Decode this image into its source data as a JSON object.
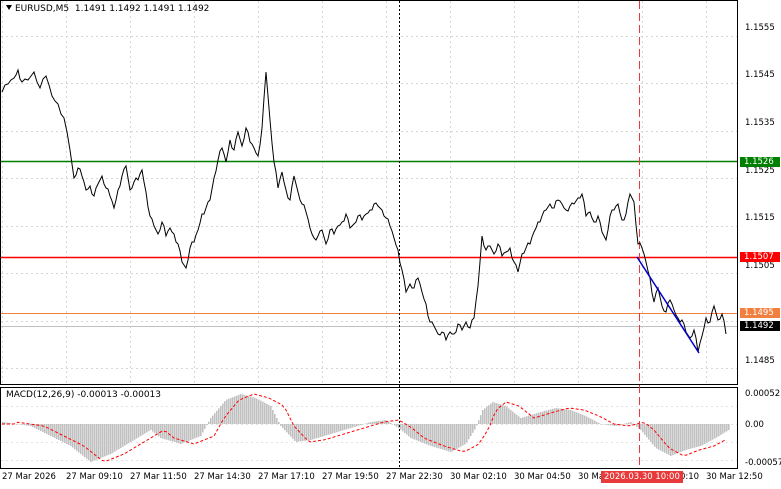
{
  "header": {
    "symbol": "EURUSD,M5",
    "ohlc": "1.1491 1.1492 1.1491 1.1492"
  },
  "macd": {
    "label": "MACD(12,26,9) -0.00013 -0.00013",
    "axis": [
      "0.00052",
      "0.00",
      "-0.00057"
    ]
  },
  "price_axis": [
    "1.1555",
    "1.1545",
    "1.1535",
    "1.1525",
    "1.1515",
    "1.1505",
    "1.1485"
  ],
  "levels": [
    {
      "value": "1.1526",
      "color": "#008000"
    },
    {
      "value": "1.1507",
      "color": "#ff0000"
    },
    {
      "value": "1.1495",
      "color": "#f08040"
    },
    {
      "value": "1.1492",
      "color": "#000000"
    }
  ],
  "time_axis": [
    "27 Mar 2026",
    "27 Mar 09:10",
    "27 Mar 11:50",
    "27 Mar 14:30",
    "27 Mar 17:10",
    "27 Mar 19:50",
    "27 Mar 22:30",
    "30 Mar 02:10",
    "30 Mar 04:50",
    "30 Mar 07:30",
    "0:10",
    "30 Mar 12:50"
  ],
  "time_marker": "2026.03.30 10:00",
  "colors": {
    "grid": "#c8c8c8",
    "price_line": "#000000",
    "macd_hist": "#c0c0c0",
    "macd_signal": "#ff0000",
    "trend": "#0000cc"
  }
}
